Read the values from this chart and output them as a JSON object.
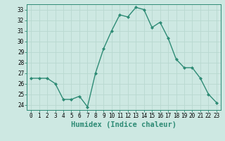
{
  "xlabel": "Humidex (Indice chaleur)",
  "x": [
    0,
    1,
    2,
    3,
    4,
    5,
    6,
    7,
    8,
    9,
    10,
    11,
    12,
    13,
    14,
    15,
    16,
    17,
    18,
    19,
    20,
    21,
    22,
    23
  ],
  "y": [
    26.5,
    26.5,
    26.5,
    26.0,
    24.5,
    24.5,
    24.8,
    23.8,
    27.0,
    29.3,
    31.0,
    32.5,
    32.3,
    33.2,
    33.0,
    31.3,
    31.8,
    30.3,
    28.3,
    27.5,
    27.5,
    26.5,
    25.0,
    24.2
  ],
  "line_color": "#2e8b75",
  "marker": "D",
  "marker_size": 2.0,
  "line_width": 1.0,
  "bg_color": "#cde8e2",
  "grid_color": "#b8d8d0",
  "ylim": [
    23.5,
    33.5
  ],
  "yticks": [
    24,
    25,
    26,
    27,
    28,
    29,
    30,
    31,
    32,
    33
  ],
  "xticks": [
    0,
    1,
    2,
    3,
    4,
    5,
    6,
    7,
    8,
    9,
    10,
    11,
    12,
    13,
    14,
    15,
    16,
    17,
    18,
    19,
    20,
    21,
    22,
    23
  ],
  "tick_fontsize": 5.5,
  "xlabel_fontsize": 7.5,
  "xlim_left": -0.5,
  "xlim_right": 23.5
}
